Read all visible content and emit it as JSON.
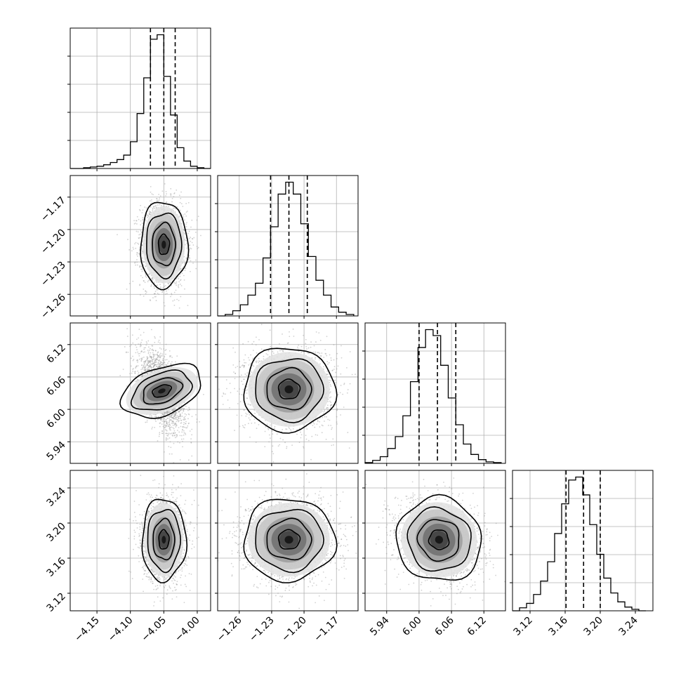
{
  "figure": {
    "title": "",
    "parameter_labels": [
      "",
      "",
      "",
      ""
    ],
    "colors": {
      "line": "#000000",
      "grid": "#b0b0b0",
      "scatter": "#9a9a9a",
      "background": "#ffffff"
    }
  },
  "chart_data": [
    {
      "type": "histogram",
      "parameter_index": 0,
      "xlim": [
        -4.19,
        -3.98
      ],
      "grid": true,
      "bin_edges": [
        -4.19,
        -4.18,
        -4.17,
        -4.16,
        -4.15,
        -4.14,
        -4.13,
        -4.12,
        -4.11,
        -4.1,
        -4.09,
        -4.08,
        -4.07,
        -4.06,
        -4.05,
        -4.04,
        -4.03,
        -4.02,
        -4.01,
        -4.0,
        -3.99,
        -3.98
      ],
      "counts": [
        0,
        0,
        0.005,
        0.01,
        0.015,
        0.025,
        0.04,
        0.06,
        0.09,
        0.18,
        0.37,
        0.61,
        0.87,
        0.9,
        0.62,
        0.36,
        0.14,
        0.05,
        0.015,
        0.005,
        0
      ],
      "quantiles": [
        -4.07,
        -4.05,
        -4.033
      ],
      "xticks": [
        "-4.15",
        "-4.10",
        "-4.05",
        "-4.00"
      ]
    },
    {
      "type": "histogram",
      "parameter_index": 1,
      "xlim": [
        -1.28,
        -1.15
      ],
      "grid": true,
      "bin_edges": [
        -1.28,
        -1.273,
        -1.266,
        -1.259,
        -1.252,
        -1.245,
        -1.238,
        -1.231,
        -1.224,
        -1.217,
        -1.21,
        -1.203,
        -1.196,
        -1.189,
        -1.182,
        -1.175,
        -1.168,
        -1.161,
        -1.154
      ],
      "counts": [
        0,
        0.01,
        0.035,
        0.075,
        0.14,
        0.22,
        0.39,
        0.6,
        0.82,
        0.9,
        0.82,
        0.62,
        0.4,
        0.24,
        0.14,
        0.06,
        0.025,
        0.01
      ],
      "quantiles": [
        -1.231,
        -1.214,
        -1.197
      ],
      "xticks": [
        "-1.26",
        "-1.23",
        "-1.20",
        "-1.17"
      ]
    },
    {
      "type": "histogram",
      "parameter_index": 2,
      "xlim": [
        5.9,
        6.16
      ],
      "grid": true,
      "bin_edges": [
        5.9,
        5.914,
        5.928,
        5.942,
        5.956,
        5.97,
        5.984,
        5.998,
        6.012,
        6.026,
        6.04,
        6.054,
        6.068,
        6.082,
        6.096,
        6.11,
        6.124,
        6.138,
        6.152
      ],
      "counts": [
        0.005,
        0.02,
        0.045,
        0.1,
        0.18,
        0.32,
        0.55,
        0.78,
        0.9,
        0.86,
        0.66,
        0.44,
        0.26,
        0.13,
        0.06,
        0.025,
        0.01,
        0.005
      ],
      "quantiles": [
        6.0,
        6.034,
        6.068
      ],
      "xticks": [
        "5.94",
        "6.00",
        "6.06",
        "6.12"
      ]
    },
    {
      "type": "histogram",
      "parameter_index": 3,
      "xlim": [
        3.1,
        3.26
      ],
      "grid": true,
      "bin_edges": [
        3.1,
        3.108,
        3.116,
        3.124,
        3.132,
        3.14,
        3.148,
        3.156,
        3.164,
        3.172,
        3.18,
        3.188,
        3.196,
        3.204,
        3.212,
        3.22,
        3.228,
        3.236,
        3.244,
        3.252
      ],
      "counts": [
        0,
        0.02,
        0.05,
        0.11,
        0.2,
        0.33,
        0.52,
        0.72,
        0.88,
        0.9,
        0.78,
        0.58,
        0.38,
        0.22,
        0.12,
        0.06,
        0.025,
        0.01,
        0
      ],
      "quantiles": [
        3.161,
        3.181,
        3.2
      ],
      "xticks": [
        "3.12",
        "3.16",
        "3.20",
        "3.24"
      ]
    },
    {
      "type": "scatter-contour",
      "x_param": 0,
      "y_param": 1,
      "xlim": [
        -4.19,
        -3.98
      ],
      "ylim": [
        -1.28,
        -1.15
      ],
      "center": [
        -4.05,
        -1.214
      ],
      "sigma": [
        0.015,
        0.017
      ],
      "correlation": 0.0,
      "yticks": [
        "-1.17",
        "-1.20",
        "-1.23",
        "-1.26"
      ]
    },
    {
      "type": "scatter-contour",
      "x_param": 0,
      "y_param": 2,
      "xlim": [
        -4.19,
        -3.98
      ],
      "ylim": [
        5.9,
        6.16
      ],
      "center": [
        -4.053,
        6.034
      ],
      "sigma": [
        0.015,
        0.033
      ],
      "correlation": -0.55,
      "yticks": [
        "6.12",
        "6.06",
        "6.00",
        "5.94"
      ]
    },
    {
      "type": "scatter-contour",
      "x_param": 1,
      "y_param": 2,
      "xlim": [
        -1.28,
        -1.15
      ],
      "ylim": [
        5.9,
        6.16
      ],
      "center": [
        -1.214,
        6.037
      ],
      "sigma": [
        0.018,
        0.033
      ],
      "correlation": 0.0
    },
    {
      "type": "scatter-contour",
      "x_param": 0,
      "y_param": 3,
      "xlim": [
        -4.19,
        -3.98
      ],
      "ylim": [
        3.1,
        3.26
      ],
      "center": [
        -4.05,
        3.181
      ],
      "sigma": [
        0.014,
        0.02
      ],
      "correlation": 0.0,
      "yticks": [
        "3.24",
        "3.20",
        "3.16",
        "3.12"
      ]
    },
    {
      "type": "scatter-contour",
      "x_param": 1,
      "y_param": 3,
      "xlim": [
        -1.28,
        -1.15
      ],
      "ylim": [
        3.1,
        3.26
      ],
      "center": [
        -1.214,
        3.181
      ],
      "sigma": [
        0.018,
        0.02
      ],
      "correlation": 0.0
    },
    {
      "type": "scatter-contour",
      "x_param": 2,
      "y_param": 3,
      "xlim": [
        5.9,
        6.16
      ],
      "ylim": [
        3.1,
        3.26
      ],
      "center": [
        6.037,
        3.181
      ],
      "sigma": [
        0.034,
        0.02
      ],
      "correlation": -0.2
    }
  ]
}
